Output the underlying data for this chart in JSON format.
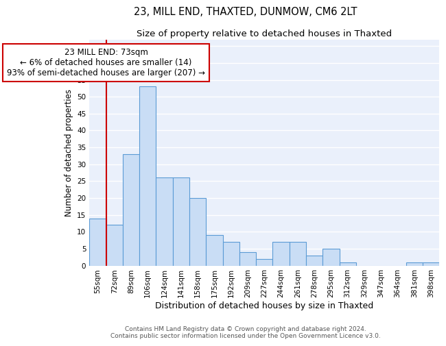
{
  "title1": "23, MILL END, THAXTED, DUNMOW, CM6 2LT",
  "title2": "Size of property relative to detached houses in Thaxted",
  "xlabel": "Distribution of detached houses by size in Thaxted",
  "ylabel": "Number of detached properties",
  "categories": [
    "55sqm",
    "72sqm",
    "89sqm",
    "106sqm",
    "124sqm",
    "141sqm",
    "158sqm",
    "175sqm",
    "192sqm",
    "209sqm",
    "227sqm",
    "244sqm",
    "261sqm",
    "278sqm",
    "295sqm",
    "312sqm",
    "329sqm",
    "347sqm",
    "364sqm",
    "381sqm",
    "398sqm"
  ],
  "values": [
    14,
    12,
    33,
    53,
    26,
    26,
    20,
    9,
    7,
    4,
    2,
    7,
    7,
    3,
    5,
    1,
    0,
    0,
    0,
    1,
    1
  ],
  "bar_color": "#c9ddf5",
  "bar_edge_color": "#5b9bd5",
  "vline_x_index": 1,
  "annotation_text": "23 MILL END: 73sqm\n← 6% of detached houses are smaller (14)\n93% of semi-detached houses are larger (207) →",
  "annotation_box_color": "white",
  "annotation_box_edge_color": "#cc0000",
  "vline_color": "#cc0000",
  "ylim": [
    0,
    67
  ],
  "yticks": [
    0,
    5,
    10,
    15,
    20,
    25,
    30,
    35,
    40,
    45,
    50,
    55,
    60,
    65
  ],
  "footer1": "Contains HM Land Registry data © Crown copyright and database right 2024.",
  "footer2": "Contains public sector information licensed under the Open Government Licence v3.0.",
  "bg_color": "#eaf0fb",
  "grid_color": "white",
  "title1_fontsize": 10.5,
  "title2_fontsize": 9.5,
  "tick_fontsize": 7.5,
  "ylabel_fontsize": 8.5,
  "xlabel_fontsize": 9,
  "footer_fontsize": 6.5,
  "annotation_fontsize": 8.5
}
